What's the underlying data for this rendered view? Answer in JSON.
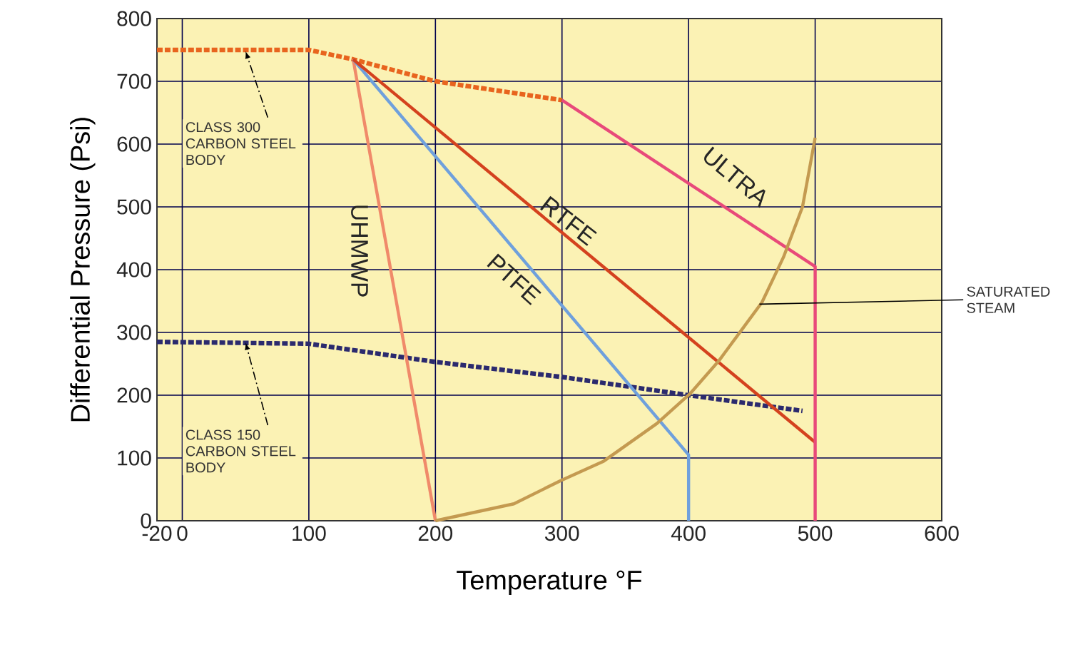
{
  "chart_data": {
    "type": "line",
    "xlabel": "Temperature °F",
    "ylabel": "Differential Pressure (Psi)",
    "xlim": [
      -20,
      600
    ],
    "ylim": [
      0,
      800
    ],
    "xticks": [
      -20,
      0,
      100,
      200,
      300,
      400,
      500,
      600
    ],
    "yticks": [
      0,
      100,
      200,
      300,
      400,
      500,
      600,
      700,
      800
    ],
    "grid": true,
    "series": [
      {
        "name": "CLASS 300 CARBON STEEL BODY",
        "color": "#e8641e",
        "line_style": "dashed",
        "x": [
          -20,
          100,
          135,
          200,
          300
        ],
        "values": [
          750,
          750,
          735,
          700,
          670
        ]
      },
      {
        "name": "CLASS 150 CARBON STEEL BODY",
        "color": "#2b2a6e",
        "line_style": "dashed",
        "x": [
          -20,
          100,
          200,
          300,
          400,
          490
        ],
        "values": [
          285,
          282,
          253,
          229,
          200,
          175
        ]
      },
      {
        "name": "UHMWP",
        "color": "#f08a6a",
        "x": [
          135,
          200
        ],
        "values": [
          735,
          0
        ]
      },
      {
        "name": "PTFE",
        "color": "#6fa0dc",
        "x": [
          135,
          400,
          400
        ],
        "values": [
          735,
          105,
          0
        ]
      },
      {
        "name": "RTFE",
        "color": "#d4421e",
        "x": [
          135,
          500
        ],
        "values": [
          735,
          125
        ]
      },
      {
        "name": "ULTRA",
        "color": "#e84a7a",
        "x": [
          300,
          500,
          500
        ],
        "values": [
          670,
          405,
          0
        ]
      },
      {
        "name": "SATURATED STEAM",
        "color": "#c49a50",
        "x": [
          200,
          262,
          299,
          333,
          375,
          401,
          424,
          443,
          458,
          475,
          490,
          500
        ],
        "values": [
          0,
          27,
          64,
          95,
          155,
          202,
          255,
          307,
          348,
          420,
          500,
          610
        ]
      }
    ]
  }
}
